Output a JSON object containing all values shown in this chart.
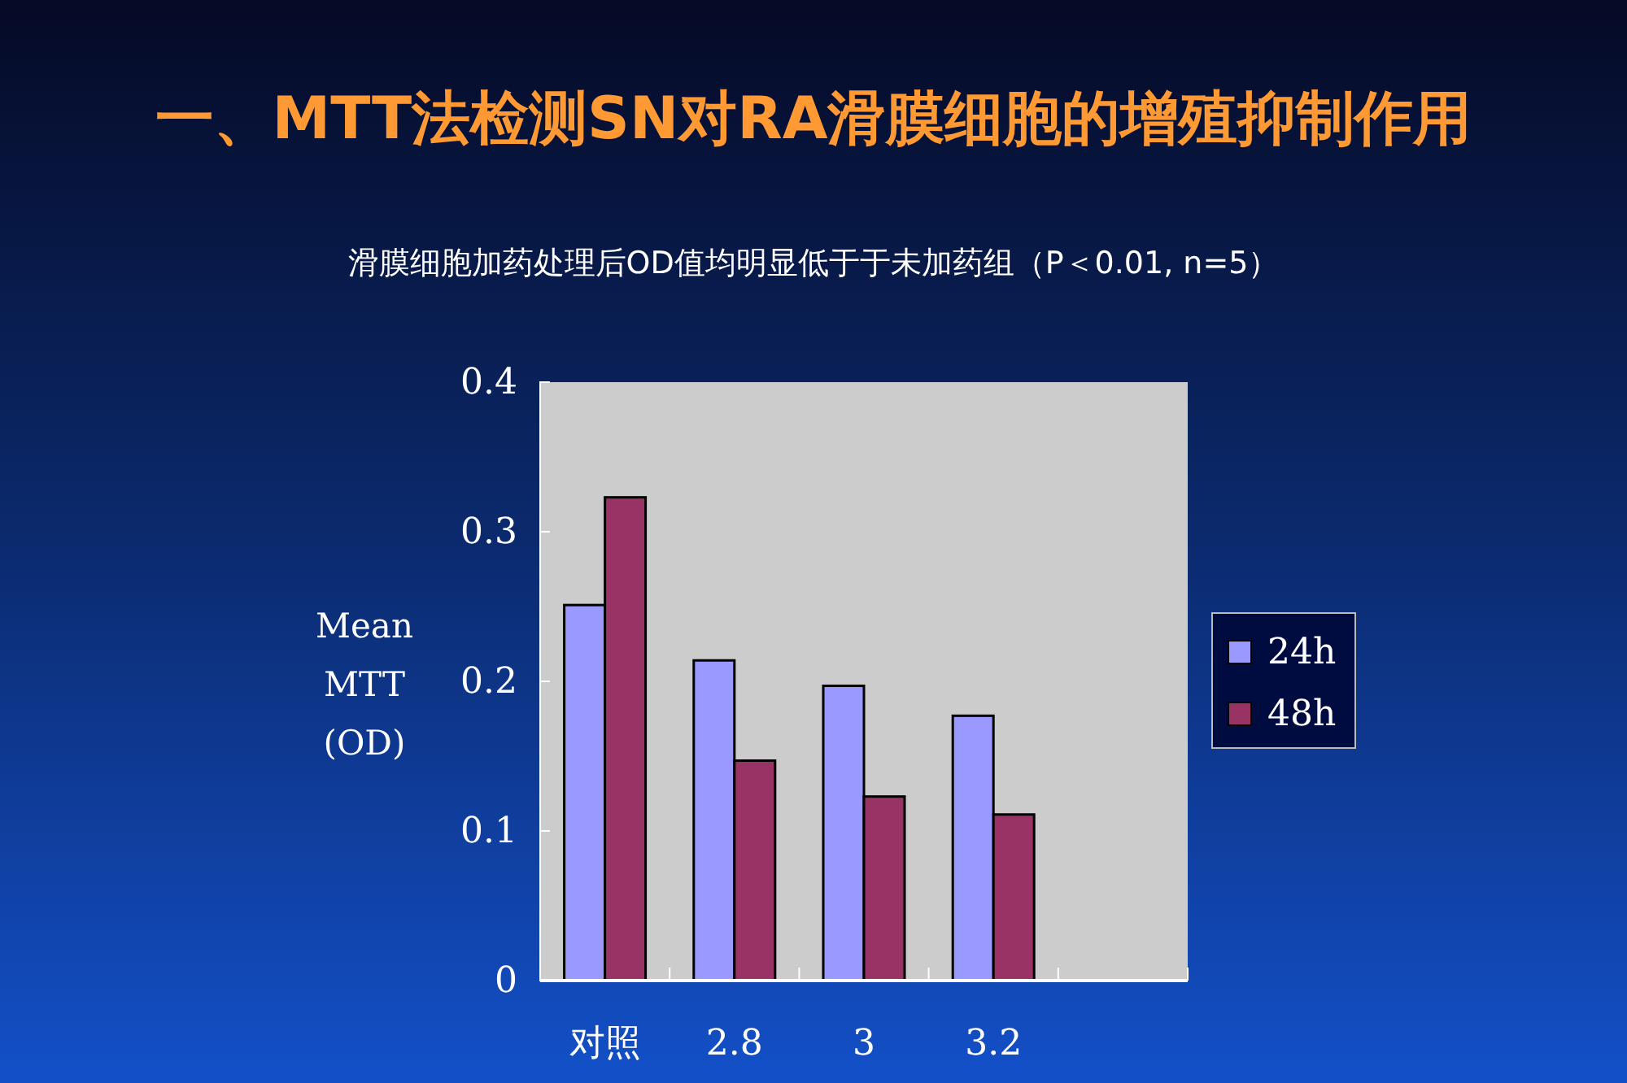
{
  "chart_data": {
    "type": "bar",
    "title": "一、MTT法检测SN对RA滑膜细胞的增殖抑制作用",
    "subtitle": "滑膜细胞加药处理后OD值均明显低于于未加药组（P＜0.01, n=5）",
    "ylabel": "Mean MTT (OD)",
    "categories": [
      "对照",
      "2.8",
      "3",
      "3.2",
      null
    ],
    "series": [
      {
        "name": "24h",
        "color": "#9999ff",
        "values": [
          0.251,
          0.214,
          0.197,
          0.177,
          null
        ]
      },
      {
        "name": "48h",
        "color": "#993366",
        "values": [
          0.323,
          0.147,
          0.123,
          0.111,
          null
        ]
      }
    ],
    "ylim": [
      0,
      0.4
    ],
    "yticks": [
      0,
      0.1,
      0.2,
      0.3,
      0.4
    ],
    "grid": false,
    "legend": "right"
  }
}
